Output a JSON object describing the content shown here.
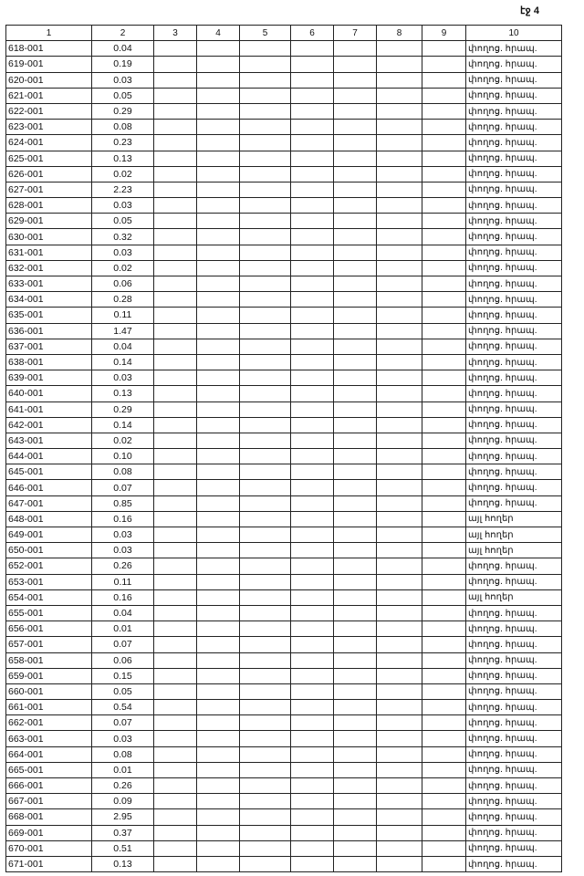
{
  "page_label": "էջ 4",
  "headers": [
    "1",
    "2",
    "3",
    "4",
    "5",
    "6",
    "7",
    "8",
    "9",
    "10"
  ],
  "rows": [
    [
      "618-001",
      "0.04",
      "փողոց. հրապ."
    ],
    [
      "619-001",
      "0.19",
      "փողոց. հրապ."
    ],
    [
      "620-001",
      "0.03",
      "փողոց. հրապ."
    ],
    [
      "621-001",
      "0.05",
      "փողոց. հրապ."
    ],
    [
      "622-001",
      "0.29",
      "փողոց. հրապ."
    ],
    [
      "623-001",
      "0.08",
      "փողոց. հրապ."
    ],
    [
      "624-001",
      "0.23",
      "փողոց. հրապ."
    ],
    [
      "625-001",
      "0.13",
      "փողոց. հրապ."
    ],
    [
      "626-001",
      "0.02",
      "փողոց. հրապ."
    ],
    [
      "627-001",
      "2.23",
      "փողոց. հրապ."
    ],
    [
      "628-001",
      "0.03",
      "փողոց. հրապ."
    ],
    [
      "629-001",
      "0.05",
      "փողոց. հրապ."
    ],
    [
      "630-001",
      "0.32",
      "փողոց. հրապ."
    ],
    [
      "631-001",
      "0.03",
      "փողոց. հրապ."
    ],
    [
      "632-001",
      "0.02",
      "փողոց. հրապ."
    ],
    [
      "633-001",
      "0.06",
      "փողոց. հրապ."
    ],
    [
      "634-001",
      "0.28",
      "փողոց. հրապ."
    ],
    [
      "635-001",
      "0.11",
      "փողոց. հրապ."
    ],
    [
      "636-001",
      "1.47",
      "փողոց. հրապ."
    ],
    [
      "637-001",
      "0.04",
      "փողոց. հրապ."
    ],
    [
      "638-001",
      "0.14",
      "փողոց. հրապ."
    ],
    [
      "639-001",
      "0.03",
      "փողոց. հրապ."
    ],
    [
      "640-001",
      "0.13",
      "փողոց. հրապ."
    ],
    [
      "641-001",
      "0.29",
      "փողոց. հրապ."
    ],
    [
      "642-001",
      "0.14",
      "փողոց. հրապ."
    ],
    [
      "643-001",
      "0.02",
      "փողոց. հրապ."
    ],
    [
      "644-001",
      "0.10",
      "փողոց. հրապ."
    ],
    [
      "645-001",
      "0.08",
      "փողոց. հրապ."
    ],
    [
      "646-001",
      "0.07",
      "փողոց. հրապ."
    ],
    [
      "647-001",
      "0.85",
      "փողոց. հրապ."
    ],
    [
      "648-001",
      "0.16",
      "այլ հողեր"
    ],
    [
      "649-001",
      "0.03",
      "այլ հողեր"
    ],
    [
      "650-001",
      "0.03",
      "այլ հողեր"
    ],
    [
      "652-001",
      "0.26",
      "փողոց. հրապ."
    ],
    [
      "653-001",
      "0.11",
      "փողոց. հրապ."
    ],
    [
      "654-001",
      "0.16",
      "այլ հողեր"
    ],
    [
      "655-001",
      "0.04",
      "փողոց. հրապ."
    ],
    [
      "656-001",
      "0.01",
      "փողոց. հրապ."
    ],
    [
      "657-001",
      "0.07",
      "փողոց. հրապ."
    ],
    [
      "658-001",
      "0.06",
      "փողոց. հրապ."
    ],
    [
      "659-001",
      "0.15",
      "փողոց. հրապ."
    ],
    [
      "660-001",
      "0.05",
      "փողոց. հրապ."
    ],
    [
      "661-001",
      "0.54",
      "փողոց. հրապ."
    ],
    [
      "662-001",
      "0.07",
      "փողոց. հրապ."
    ],
    [
      "663-001",
      "0.03",
      "փողոց. հրապ."
    ],
    [
      "664-001",
      "0.08",
      "փողոց. հրապ."
    ],
    [
      "665-001",
      "0.01",
      "փողոց. հրապ."
    ],
    [
      "666-001",
      "0.26",
      "փողոց. հրապ."
    ],
    [
      "667-001",
      "0.09",
      "փողոց. հրապ."
    ],
    [
      "668-001",
      "2.95",
      "փողոց. հրապ."
    ],
    [
      "669-001",
      "0.37",
      "փողոց. հրապ."
    ],
    [
      "670-001",
      "0.51",
      "փողոց. հրապ."
    ],
    [
      "671-001",
      "0.13",
      "փողոց. հրապ."
    ]
  ]
}
